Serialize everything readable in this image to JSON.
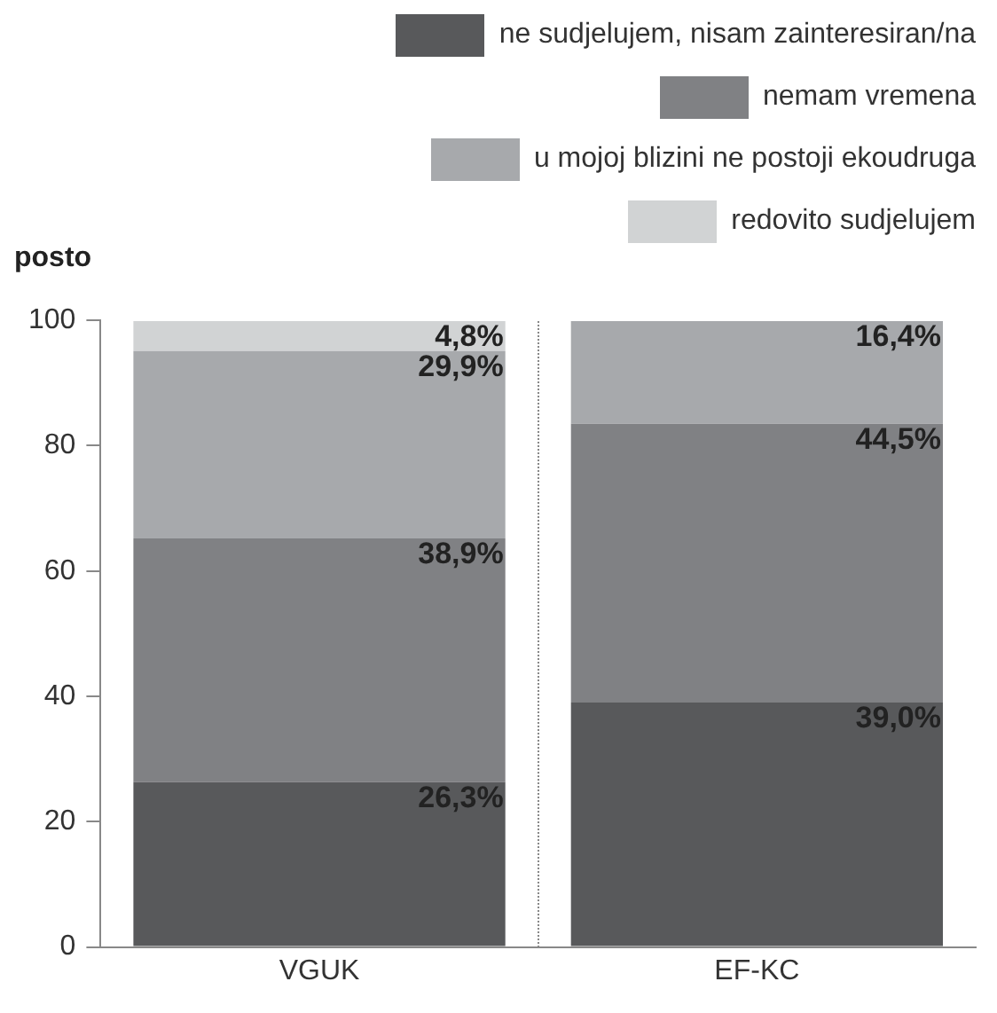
{
  "chart_data": {
    "type": "bar",
    "stacked": true,
    "ylabel": "posto",
    "categories": [
      "VGUK",
      "EF-KC"
    ],
    "ylim": [
      0,
      100
    ],
    "yticks": [
      0,
      20,
      40,
      60,
      80,
      100
    ],
    "grid": false,
    "legend": "top right",
    "series": [
      {
        "name": "ne sudjelujem, nisam zainteresiran/na",
        "color": "#58595b",
        "values": [
          26.3,
          39.0
        ],
        "value_labels": [
          "26,3%",
          "39,0%"
        ]
      },
      {
        "name": "nemam vremena",
        "color": "#808184",
        "values": [
          38.9,
          44.5
        ],
        "value_labels": [
          "38,9%",
          "44,5%"
        ]
      },
      {
        "name": "u mojoj blizini ne postoji ekoudruga",
        "color": "#a7a9ac",
        "values": [
          29.9,
          16.4
        ],
        "value_labels": [
          "29,9%",
          "16,4%"
        ]
      },
      {
        "name": "redovito sudjelujem",
        "color": "#d1d3d4",
        "values": [
          4.8,
          null
        ],
        "value_labels": [
          "4,8%",
          null
        ]
      }
    ]
  }
}
